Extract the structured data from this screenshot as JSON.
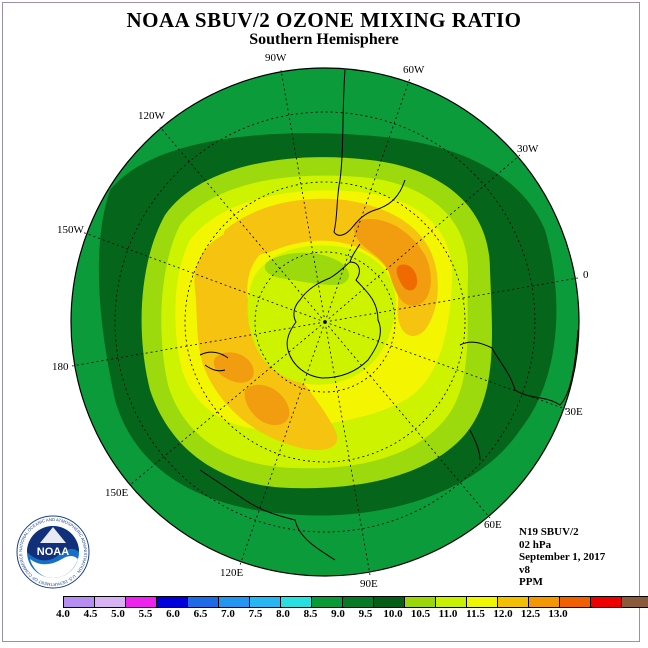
{
  "header": {
    "title": "NOAA SBUV/2 OZONE MIXING RATIO",
    "subtitle": "Southern Hemisphere"
  },
  "longitude_labels": [
    "90W",
    "60W",
    "30W",
    "0",
    "30E",
    "60E",
    "90E",
    "120E",
    "150E",
    "180",
    "150W",
    "120W"
  ],
  "info": {
    "satellite": "N19 SBUV/2",
    "level": "02 hPa",
    "date": "September 1, 2017",
    "version": "v8",
    "units": "PPM"
  },
  "logo": {
    "text": "NOAA",
    "ring_text": "NATIONAL OCEANIC AND ATMOSPHERIC ADMINISTRATION · U.S. DEPARTMENT OF COMMERCE"
  },
  "colorbar": {
    "ticks": [
      "4.0",
      "4.5",
      "5.0",
      "5.5",
      "6.0",
      "6.5",
      "7.0",
      "7.5",
      "8.0",
      "8.5",
      "9.0",
      "9.5",
      "10.0",
      "10.5",
      "11.0",
      "11.5",
      "12.0",
      "12.5",
      "13.0"
    ],
    "colors": [
      "#b68df0",
      "#d8b3f3",
      "#ee22ee",
      "#0000dd",
      "#1e6be8",
      "#2596f0",
      "#26b7f2",
      "#28e0e0",
      "#0a9a35",
      "#077a25",
      "#055e15",
      "#9ad60a",
      "#c8f000",
      "#f0f500",
      "#f2c000",
      "#f29800",
      "#f06000",
      "#ee0000",
      "#8b5a3a"
    ]
  },
  "map_colors": {
    "ring_9_0": "#0b9b3a",
    "ring_8_5": "#05661b",
    "ring_9_5": "#9cd90d",
    "ring_10_0": "#cdf300",
    "ring_10_5": "#f3f600",
    "ring_11_0": "#f5c310",
    "ring_11_5": "#f29c10",
    "ring_12_0": "#ef6a00"
  }
}
